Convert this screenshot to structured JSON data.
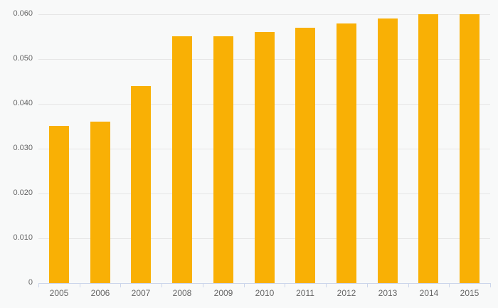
{
  "chart_data": {
    "type": "bar",
    "title": "",
    "xlabel": "",
    "ylabel": "",
    "categories": [
      "2005",
      "2006",
      "2007",
      "2008",
      "2009",
      "2010",
      "2011",
      "2012",
      "2013",
      "2014",
      "2015"
    ],
    "values": [
      0.035,
      0.036,
      0.044,
      0.055,
      0.055,
      0.056,
      0.057,
      0.058,
      0.059,
      0.06,
      0.06
    ],
    "ylim": [
      0,
      0.06
    ],
    "y_ticks": [
      0,
      0.01,
      0.02,
      0.03,
      0.04,
      0.05,
      0.06
    ],
    "y_tick_labels": [
      "0",
      "0.010",
      "0.020",
      "0.030",
      "0.040",
      "0.050",
      "0.060"
    ],
    "grid": true,
    "legend": "none",
    "colors": {
      "bar": "#f9b005",
      "background": "#f8f9f9",
      "gridline": "#e6e6e6",
      "axis_line": "#ccd6eb",
      "label_text": "#666666"
    }
  }
}
